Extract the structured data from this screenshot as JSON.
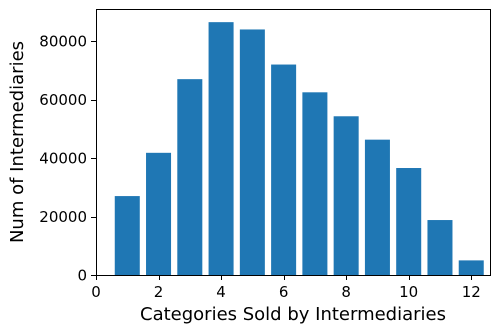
{
  "chart_data": {
    "type": "bar",
    "title": "",
    "xlabel": "Categories Sold by Intermediaries",
    "ylabel": "Num of Intermediaries",
    "x": [
      1,
      2,
      3,
      4,
      5,
      6,
      7,
      8,
      9,
      10,
      11,
      12
    ],
    "values": [
      27000,
      41800,
      67000,
      86500,
      84000,
      72000,
      62500,
      54300,
      46300,
      36600,
      18800,
      5000
    ],
    "xlim": [
      0,
      12.6
    ],
    "ylim": [
      0,
      91000
    ],
    "xticks": [
      0,
      2,
      4,
      6,
      8,
      10,
      12
    ],
    "yticks": [
      0,
      20000,
      40000,
      60000,
      80000
    ],
    "bar_color": "#1f77b4",
    "grid": false,
    "legend": "none"
  }
}
